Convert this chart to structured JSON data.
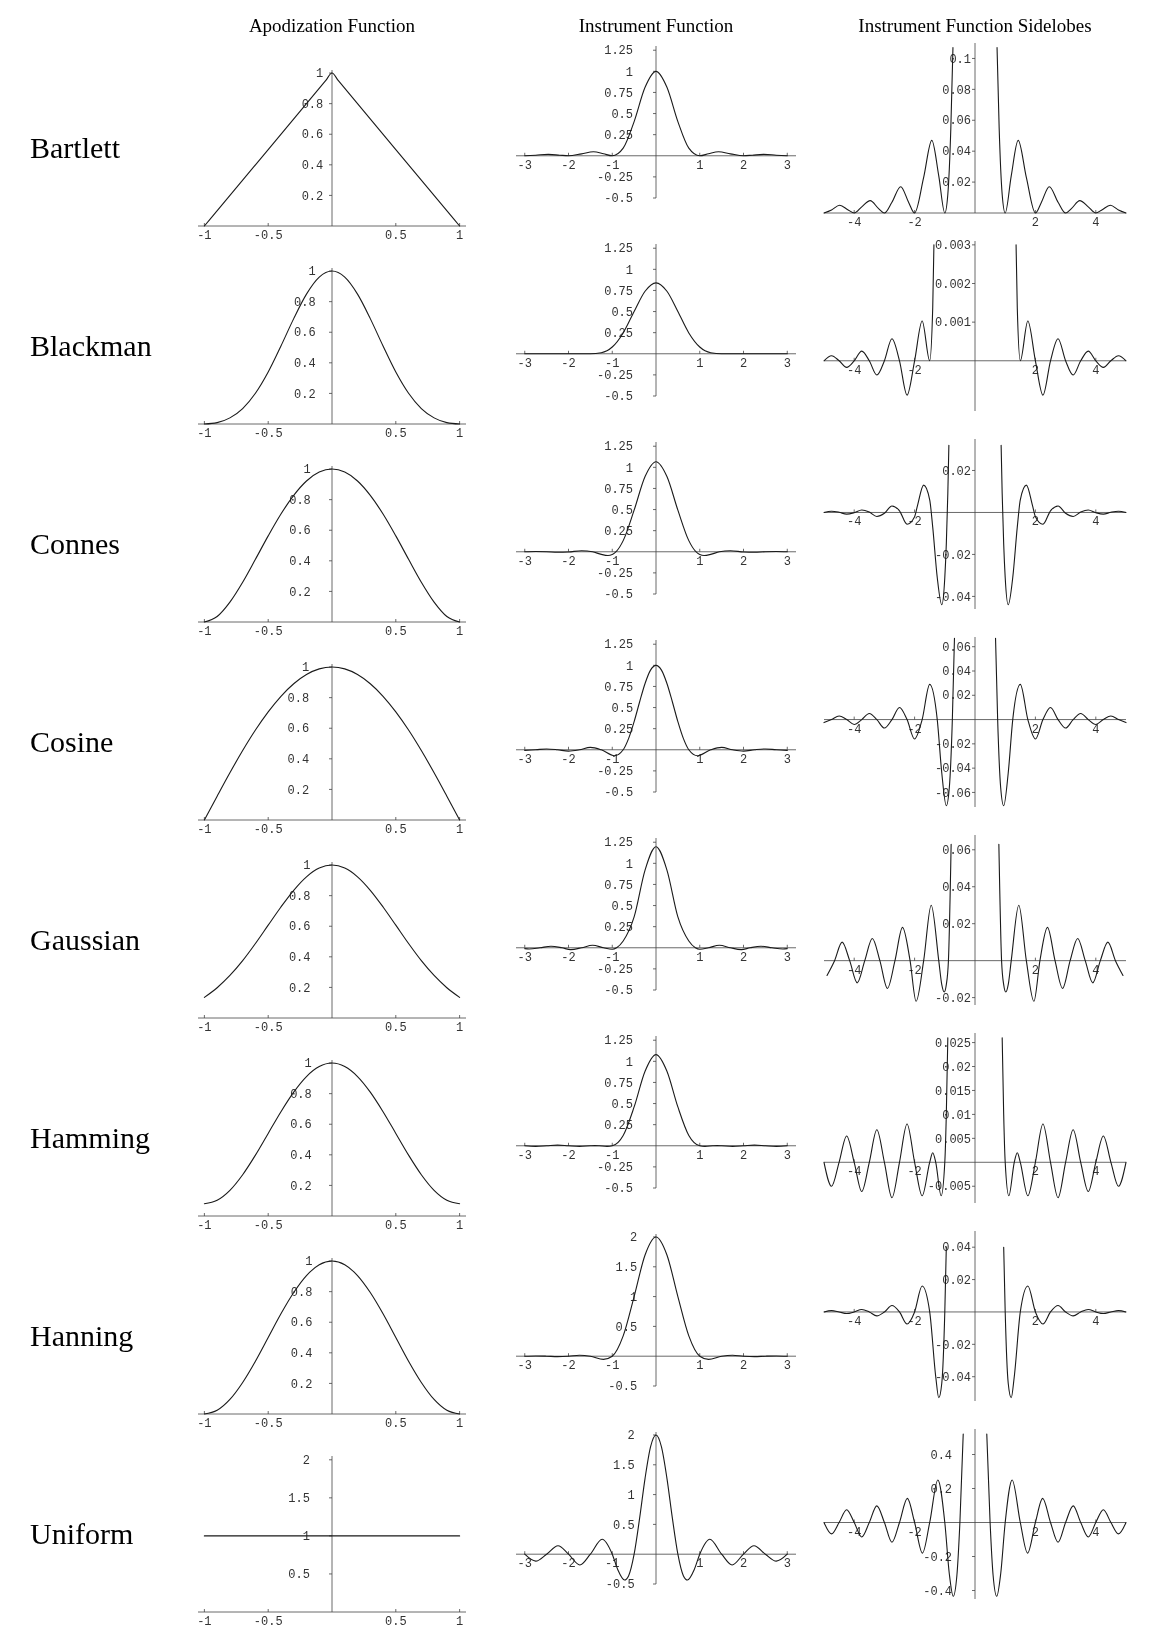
{
  "chart_data": [
    {
      "type": "line",
      "title": "Apodization Function",
      "ylabel": "Bartlett",
      "color": "#1a1a1a",
      "x": [
        -1,
        -0.5,
        -0.05,
        0,
        0.05,
        0.5,
        1
      ],
      "values": [
        0,
        0.5,
        0.95,
        1,
        0.95,
        0.5,
        0
      ],
      "xlim": [
        -1.05,
        1.05
      ],
      "ylim": [
        0,
        1.02
      ],
      "xticks": [
        -1,
        -0.5,
        0.5,
        1
      ],
      "yticks": [
        0.2,
        0.4,
        0.6,
        0.8,
        1
      ]
    },
    {
      "type": "line",
      "title": "Instrument Function",
      "color": "#1a1a1a",
      "x": [
        -3,
        -2.75,
        -2.46,
        -2.2,
        -2,
        -1.7,
        -1.43,
        -1.2,
        -1,
        -0.75,
        -0.5,
        -0.25,
        0,
        0.25,
        0.5,
        0.75,
        1,
        1.2,
        1.43,
        1.7,
        2,
        2.2,
        2.46,
        2.75,
        3
      ],
      "values": [
        0,
        0.007,
        0.017,
        0.007,
        0,
        0.023,
        0.047,
        0.024,
        0,
        0.09,
        0.405,
        0.811,
        1,
        0.811,
        0.405,
        0.09,
        0,
        0.024,
        0.047,
        0.023,
        0,
        0.007,
        0.017,
        0.007,
        0
      ],
      "xlim": [
        -3.2,
        3.2
      ],
      "ylim": [
        -0.5,
        1.3
      ],
      "xticks": [
        -3,
        -2,
        -1,
        1,
        2,
        3
      ],
      "yticks": [
        -0.5,
        -0.25,
        0.25,
        0.5,
        0.75,
        1,
        1.25
      ]
    },
    {
      "type": "line",
      "title": "Instrument Function Sidelobes",
      "color": "#1a1a1a",
      "x": [
        -5,
        -4.75,
        -4.48,
        -4.2,
        -4,
        -3.75,
        -3.47,
        -3.2,
        -3,
        -2.75,
        -2.46,
        -2.2,
        -2,
        -1.7,
        -1.43,
        -1.2,
        -1,
        -0.9,
        -0.8,
        -0.73,
        0,
        0.73,
        0.8,
        0.9,
        1,
        1.2,
        1.43,
        1.7,
        2,
        2.2,
        2.46,
        2.75,
        3,
        3.2,
        3.47,
        3.75,
        4,
        4.2,
        4.48,
        4.75,
        5
      ],
      "values": [
        0,
        0.002,
        0.005,
        0.002,
        0,
        0.004,
        0.008,
        0.003,
        0,
        0.007,
        0.017,
        0.007,
        0,
        0.023,
        0.047,
        0.024,
        0,
        0.012,
        0.055,
        0.107,
        null,
        0.107,
        0.055,
        0.012,
        0,
        0.024,
        0.047,
        0.023,
        0,
        0.007,
        0.017,
        0.007,
        0,
        0.003,
        0.008,
        0.004,
        0,
        0.002,
        0.005,
        0.002,
        0
      ],
      "xlim": [
        -5,
        5
      ],
      "ylim": [
        0,
        0.11
      ],
      "xticks": [
        -4,
        -2,
        2,
        4
      ],
      "yticks": [
        0.02,
        0.04,
        0.06,
        0.08,
        0.1
      ]
    },
    {
      "type": "line",
      "ylabel": "Blackman",
      "color": "#1a1a1a",
      "x": [
        -1,
        -0.9,
        -0.8,
        -0.7,
        -0.6,
        -0.5,
        -0.4,
        -0.3,
        -0.2,
        -0.1,
        0,
        0.1,
        0.2,
        0.3,
        0.4,
        0.5,
        0.6,
        0.7,
        0.8,
        0.9,
        1
      ],
      "values": [
        0,
        0.009,
        0.04,
        0.101,
        0.201,
        0.34,
        0.51,
        0.689,
        0.849,
        0.96,
        1,
        0.96,
        0.849,
        0.689,
        0.51,
        0.34,
        0.201,
        0.101,
        0.04,
        0.009,
        0
      ],
      "xlim": [
        -1.05,
        1.05
      ],
      "ylim": [
        0,
        1.02
      ],
      "xticks": [
        -1,
        -0.5,
        0.5,
        1
      ],
      "yticks": [
        0.2,
        0.4,
        0.6,
        0.8,
        1
      ]
    },
    {
      "type": "line",
      "color": "#1a1a1a",
      "x": [
        -3,
        -1.5,
        -1.25,
        -1,
        -0.75,
        -0.5,
        -0.25,
        0,
        0.25,
        0.5,
        0.75,
        1,
        1.25,
        1.5,
        3
      ],
      "values": [
        0,
        0,
        0.012,
        0.08,
        0.247,
        0.5,
        0.74,
        0.84,
        0.74,
        0.5,
        0.247,
        0.08,
        0.012,
        0,
        0
      ],
      "xlim": [
        -3.2,
        3.2
      ],
      "ylim": [
        -0.5,
        1.3
      ],
      "xticks": [
        -3,
        -2,
        -1,
        1,
        2,
        3
      ],
      "yticks": [
        -0.5,
        -0.25,
        0.25,
        0.5,
        0.75,
        1,
        1.25
      ]
    },
    {
      "type": "line",
      "color": "#1a1a1a",
      "x": [
        -5,
        -4.75,
        -4.5,
        -4.25,
        -4,
        -3.75,
        -3.5,
        -3.25,
        -3,
        -2.75,
        -2.5,
        -2.25,
        -2,
        -1.75,
        -1.5,
        -1.4,
        -1.36,
        0,
        1.36,
        1.4,
        1.5,
        1.75,
        2,
        2.25,
        2.5,
        2.75,
        3,
        3.25,
        3.5,
        3.75,
        4,
        4.25,
        4.5,
        4.75,
        5
      ],
      "values": [
        0,
        0.00013,
        0,
        -0.00017,
        0,
        0.00025,
        0,
        -0.00037,
        0,
        0.00057,
        0,
        -0.00089,
        0,
        0.00103,
        0,
        0.00137,
        0.003,
        null,
        0.003,
        0.00137,
        0,
        0.00103,
        0,
        -0.00089,
        0,
        0.00057,
        0,
        -0.00037,
        0,
        0.00025,
        0,
        -0.00017,
        0,
        0.00013,
        0
      ],
      "xlim": [
        -5,
        5
      ],
      "ylim": [
        -0.0013,
        0.0031
      ],
      "xticks": [
        -4,
        -2,
        2,
        4
      ],
      "yticks": [
        0.001,
        0.002,
        0.003
      ]
    },
    {
      "type": "line",
      "ylabel": "Connes",
      "color": "#1a1a1a",
      "x": [
        -1,
        -0.9,
        -0.8,
        -0.7,
        -0.6,
        -0.5,
        -0.4,
        -0.3,
        -0.2,
        -0.1,
        0,
        0.1,
        0.2,
        0.3,
        0.4,
        0.5,
        0.6,
        0.7,
        0.8,
        0.9,
        1
      ],
      "values": [
        0,
        0.036,
        0.13,
        0.26,
        0.41,
        0.563,
        0.706,
        0.828,
        0.922,
        0.98,
        1,
        0.98,
        0.922,
        0.828,
        0.706,
        0.563,
        0.41,
        0.26,
        0.13,
        0.036,
        0
      ],
      "xlim": [
        -1.05,
        1.05
      ],
      "ylim": [
        0,
        1.02
      ],
      "xticks": [
        -1,
        -0.5,
        0.5,
        1
      ],
      "yticks": [
        0.2,
        0.4,
        0.6,
        0.8,
        1
      ]
    },
    {
      "type": "line",
      "color": "#1a1a1a",
      "x": [
        -3,
        -2.75,
        -2.5,
        -2.25,
        -2,
        -1.7,
        -1.45,
        -1.25,
        -1.1,
        -0.9,
        -0.75,
        -0.5,
        -0.25,
        0,
        0.25,
        0.5,
        0.75,
        0.9,
        1.1,
        1.25,
        1.45,
        1.7,
        2,
        2.25,
        2.5,
        2.75,
        3
      ],
      "values": [
        0,
        0.003,
        0.001,
        -0.006,
        -0.002,
        0.013,
        0,
        -0.031,
        -0.044,
        0.009,
        0.132,
        0.493,
        0.891,
        1.067,
        0.891,
        0.493,
        0.132,
        0.009,
        -0.044,
        -0.031,
        0,
        0.013,
        -0.002,
        -0.006,
        0.001,
        0.003,
        0
      ],
      "xlim": [
        -3.2,
        3.2
      ],
      "ylim": [
        -0.5,
        1.3
      ],
      "xticks": [
        -3,
        -2,
        -1,
        1,
        2,
        3
      ],
      "yticks": [
        -0.5,
        -0.25,
        0.25,
        0.5,
        0.75,
        1,
        1.25
      ]
    },
    {
      "type": "line",
      "color": "#1a1a1a",
      "x": [
        -5,
        -4.75,
        -4.5,
        -4.25,
        -4,
        -3.75,
        -3.5,
        -3.25,
        -3,
        -2.75,
        -2.5,
        -2.25,
        -2,
        -1.9,
        -1.7,
        -1.5,
        -1.4,
        -1.25,
        -1.1,
        -1,
        -0.95,
        -0.9,
        -0.865,
        0,
        0.865,
        0.9,
        0.95,
        1,
        1.1,
        1.25,
        1.4,
        1.5,
        1.7,
        1.9,
        2,
        2.25,
        2.5,
        2.75,
        3,
        3.25,
        3.5,
        3.75,
        4,
        4.25,
        4.5,
        4.75,
        5
      ],
      "values": [
        0,
        0.0006,
        0.0001,
        -0.0008,
        -0.0001,
        0.0012,
        0.0002,
        -0.0019,
        -0.0004,
        0.0031,
        0.0008,
        -0.0056,
        -0.002,
        0.0035,
        0.013,
        0.006,
        -0.007,
        -0.031,
        -0.044,
        -0.031,
        -0.015,
        0.009,
        0.032,
        null,
        0.032,
        0.009,
        -0.015,
        -0.031,
        -0.044,
        -0.031,
        -0.007,
        0.006,
        0.013,
        0.0035,
        -0.002,
        -0.0056,
        0.0008,
        0.0031,
        -0.0004,
        -0.0019,
        0.0002,
        0.0012,
        -0.0001,
        -0.0008,
        0.0001,
        0.0006,
        0
      ],
      "xlim": [
        -5,
        5
      ],
      "ylim": [
        -0.046,
        0.035
      ],
      "xticks": [
        -4,
        -2,
        2,
        4
      ],
      "yticks": [
        -0.04,
        -0.02,
        0.02
      ]
    },
    {
      "type": "line",
      "ylabel": "Cosine",
      "color": "#1a1a1a",
      "x": [
        -1,
        -0.9,
        -0.8,
        -0.7,
        -0.6,
        -0.5,
        -0.4,
        -0.3,
        -0.2,
        -0.1,
        0,
        0.1,
        0.2,
        0.3,
        0.4,
        0.5,
        0.6,
        0.7,
        0.8,
        0.9,
        1
      ],
      "values": [
        0,
        0.156,
        0.309,
        0.454,
        0.588,
        0.707,
        0.809,
        0.891,
        0.951,
        0.988,
        1,
        0.988,
        0.951,
        0.891,
        0.809,
        0.707,
        0.588,
        0.454,
        0.309,
        0.156,
        0
      ],
      "xlim": [
        -1.05,
        1.05
      ],
      "ylim": [
        0,
        1.02
      ],
      "xticks": [
        -1,
        -0.5,
        0.5,
        1
      ],
      "yticks": [
        0.2,
        0.4,
        0.6,
        0.8,
        1
      ]
    },
    {
      "type": "line",
      "color": "#1a1a1a",
      "x": [
        -3,
        -2.75,
        -2.5,
        -2.25,
        -2,
        -1.75,
        -1.5,
        -1.25,
        -0.95,
        -0.75,
        -0.625,
        -0.5,
        -0.375,
        -0.25,
        -0.125,
        0,
        0.125,
        0.25,
        0.375,
        0.5,
        0.625,
        0.75,
        0.95,
        1.25,
        1.5,
        1.75,
        2,
        2.25,
        2.5,
        2.75,
        3
      ],
      "values": [
        -0.007,
        0,
        0.01,
        0,
        -0.016,
        0,
        0.029,
        0,
        -0.071,
        0,
        0.135,
        0.333,
        0.566,
        0.785,
        0.943,
        1,
        0.943,
        0.785,
        0.566,
        0.333,
        0.135,
        0,
        -0.071,
        0,
        0.029,
        0,
        -0.016,
        0,
        0.01,
        0,
        -0.007
      ],
      "xlim": [
        -3.2,
        3.2
      ],
      "ylim": [
        -0.5,
        1.3
      ],
      "xticks": [
        -3,
        -2,
        -1,
        1,
        2,
        3
      ],
      "yticks": [
        -0.5,
        -0.25,
        0.25,
        0.5,
        0.75,
        1,
        1.25
      ]
    },
    {
      "type": "line",
      "color": "#1a1a1a",
      "x": [
        -5,
        -4.75,
        -4.5,
        -4.25,
        -4,
        -3.75,
        -3.5,
        -3.25,
        -3,
        -2.75,
        -2.5,
        -2.25,
        -2,
        -1.75,
        -1.5,
        -1.25,
        -1.1,
        -0.95,
        -0.85,
        -0.75,
        -0.68,
        0,
        0.68,
        0.75,
        0.85,
        0.95,
        1.1,
        1.25,
        1.5,
        1.75,
        2,
        2.25,
        2.5,
        2.75,
        3,
        3.25,
        3.5,
        3.75,
        4,
        4.25,
        4.5,
        4.75,
        5
      ],
      "values": [
        -0.0025,
        0,
        0.003,
        0,
        -0.004,
        0,
        0.005,
        0,
        -0.007,
        0,
        0.01,
        0,
        -0.016,
        0,
        0.029,
        0,
        -0.044,
        -0.071,
        -0.056,
        0,
        0.067,
        null,
        0.067,
        0,
        -0.056,
        -0.071,
        -0.044,
        0,
        0.029,
        0,
        -0.016,
        0,
        0.01,
        0,
        -0.007,
        0,
        0.005,
        0,
        -0.004,
        0,
        0.003,
        0,
        -0.0025
      ],
      "xlim": [
        -5,
        5
      ],
      "ylim": [
        -0.072,
        0.068
      ],
      "xticks": [
        -4,
        -2,
        2,
        4
      ],
      "yticks": [
        -0.06,
        -0.04,
        -0.02,
        0.02,
        0.04,
        0.06
      ]
    },
    {
      "type": "line",
      "ylabel": "Gaussian",
      "color": "#1a1a1a",
      "x": [
        -1,
        -0.9,
        -0.8,
        -0.7,
        -0.6,
        -0.5,
        -0.4,
        -0.3,
        -0.2,
        -0.1,
        0,
        0.1,
        0.2,
        0.3,
        0.4,
        0.5,
        0.6,
        0.7,
        0.8,
        0.9,
        1
      ],
      "values": [
        0.135,
        0.198,
        0.278,
        0.375,
        0.487,
        0.607,
        0.726,
        0.835,
        0.923,
        0.98,
        1,
        0.98,
        0.923,
        0.835,
        0.726,
        0.607,
        0.487,
        0.375,
        0.278,
        0.198,
        0.135
      ],
      "xlim": [
        -1.05,
        1.05
      ],
      "ylim": [
        0,
        1.02
      ],
      "xticks": [
        -1,
        -0.5,
        0.5,
        1
      ],
      "yticks": [
        0.2,
        0.4,
        0.6,
        0.8,
        1
      ]
    },
    {
      "type": "line",
      "color": "#1a1a1a",
      "x": [
        -3,
        -2.9,
        -2.65,
        -2.4,
        -2.15,
        -1.95,
        -1.7,
        -1.45,
        -1.2,
        -1,
        -0.9,
        -0.75,
        -0.5,
        -0.25,
        0,
        0.25,
        0.5,
        0.75,
        0.9,
        1,
        1.2,
        1.45,
        1.7,
        1.95,
        2.15,
        2.4,
        2.65,
        2.9,
        3
      ],
      "values": [
        -0.01,
        -0.015,
        0,
        0.018,
        0,
        -0.022,
        0,
        0.03,
        0,
        -0.017,
        0,
        0.08,
        0.365,
        0.92,
        1.196,
        0.92,
        0.365,
        0.08,
        0,
        -0.017,
        0,
        0.03,
        0,
        -0.022,
        0,
        0.018,
        0,
        -0.015,
        -0.01
      ],
      "xlim": [
        -3.2,
        3.2
      ],
      "ylim": [
        -0.5,
        1.3
      ],
      "xticks": [
        -3,
        -2,
        -1,
        1,
        2,
        3
      ],
      "yticks": [
        -0.5,
        -0.25,
        0.25,
        0.5,
        0.75,
        1,
        1.25
      ]
    },
    {
      "type": "line",
      "color": "#1a1a1a",
      "x": [
        -4.9,
        -4.65,
        -4.4,
        -4.15,
        -3.9,
        -3.65,
        -3.4,
        -3.15,
        -2.9,
        -2.65,
        -2.4,
        -2.15,
        -1.95,
        -1.7,
        -1.45,
        -1.2,
        -1.1,
        -1.02,
        -0.95,
        -0.88,
        -0.79,
        0,
        0.79,
        0.88,
        0.95,
        1.02,
        1.1,
        1.2,
        1.45,
        1.7,
        1.95,
        2.15,
        2.4,
        2.65,
        2.9,
        3.15,
        3.4,
        3.65,
        3.9,
        4.15,
        4.4,
        4.65,
        4.9
      ],
      "values": [
        -0.008,
        0,
        0.01,
        0,
        -0.012,
        0,
        0.012,
        0,
        -0.015,
        0,
        0.018,
        0,
        -0.022,
        0,
        0.03,
        0,
        -0.013,
        -0.017,
        -0.013,
        0,
        0.063,
        null,
        0.063,
        0,
        -0.013,
        -0.017,
        -0.013,
        0,
        0.03,
        0,
        -0.022,
        0,
        0.018,
        0,
        -0.015,
        0,
        0.012,
        0,
        -0.012,
        0,
        0.01,
        0,
        -0.008
      ],
      "xlim": [
        -5,
        5
      ],
      "ylim": [
        -0.024,
        0.068
      ],
      "xticks": [
        -4,
        -2,
        2,
        4
      ],
      "yticks": [
        -0.02,
        0.02,
        0.04,
        0.06
      ]
    },
    {
      "type": "line",
      "ylabel": "Hamming",
      "color": "#1a1a1a",
      "x": [
        -1,
        -0.9,
        -0.8,
        -0.7,
        -0.6,
        -0.5,
        -0.4,
        -0.3,
        -0.2,
        -0.1,
        0,
        0.1,
        0.2,
        0.3,
        0.4,
        0.5,
        0.6,
        0.7,
        0.8,
        0.9,
        1
      ],
      "values": [
        0.08,
        0.103,
        0.168,
        0.27,
        0.398,
        0.54,
        0.682,
        0.81,
        0.912,
        0.977,
        1,
        0.977,
        0.912,
        0.81,
        0.682,
        0.54,
        0.398,
        0.27,
        0.168,
        0.103,
        0.08
      ],
      "xlim": [
        -1.05,
        1.05
      ],
      "ylim": [
        0,
        1.02
      ],
      "xticks": [
        -1,
        -0.5,
        0.5,
        1
      ],
      "yticks": [
        0.2,
        0.4,
        0.6,
        0.8,
        1
      ]
    },
    {
      "type": "line",
      "color": "#1a1a1a",
      "x": [
        -3,
        -2.75,
        -2.5,
        -2.25,
        -2,
        -1.75,
        -1.5,
        -1.4,
        -1.3,
        -1.12,
        -1,
        -0.75,
        -0.5,
        -0.25,
        0,
        0.25,
        0.5,
        0.75,
        1,
        1.12,
        1.3,
        1.4,
        1.5,
        1.75,
        2,
        2.25,
        2.5,
        2.75,
        3
      ],
      "values": [
        0,
        -0.007,
        0,
        0.008,
        0,
        -0.007,
        0,
        0.002,
        0,
        -0.007,
        0,
        0.122,
        0.46,
        0.883,
        1.08,
        0.883,
        0.46,
        0.122,
        0,
        -0.007,
        0,
        0.002,
        0,
        -0.007,
        0,
        0.008,
        0,
        -0.007,
        0
      ],
      "xlim": [
        -3.2,
        3.2
      ],
      "ylim": [
        -0.5,
        1.3
      ],
      "xticks": [
        -3,
        -2,
        -1,
        1,
        2,
        3
      ],
      "yticks": [
        -0.5,
        -0.25,
        0.25,
        0.5,
        0.75,
        1,
        1.25
      ]
    },
    {
      "type": "line",
      "color": "#1a1a1a",
      "x": [
        -5,
        -4.75,
        -4.5,
        -4.25,
        -4,
        -3.75,
        -3.5,
        -3.25,
        -3,
        -2.75,
        -2.5,
        -2.25,
        -2,
        -1.75,
        -1.5,
        -1.4,
        -1.3,
        -1.12,
        -1,
        -0.95,
        -0.9,
        0,
        0.9,
        0.95,
        1,
        1.12,
        1.3,
        1.4,
        1.5,
        1.75,
        2,
        2.25,
        2.5,
        2.75,
        3,
        3.25,
        3.5,
        3.75,
        4,
        4.25,
        4.5,
        4.75,
        5
      ],
      "values": [
        0,
        -0.005,
        0,
        0.0055,
        0,
        -0.0061,
        0,
        0.0068,
        0,
        -0.0074,
        0,
        0.008,
        0,
        -0.007,
        0,
        0.002,
        0,
        -0.007,
        0,
        0.01,
        0.026,
        null,
        0.026,
        0.01,
        0,
        -0.007,
        0,
        0.002,
        0,
        -0.007,
        0,
        0.008,
        0,
        -0.0074,
        0,
        0.0068,
        0,
        -0.0061,
        0,
        0.0055,
        0,
        -0.005,
        0
      ],
      "xlim": [
        -5,
        5
      ],
      "ylim": [
        -0.0085,
        0.027
      ],
      "xticks": [
        -4,
        -2,
        2,
        4
      ],
      "yticks": [
        -0.005,
        0.005,
        0.01,
        0.015,
        0.02,
        0.025
      ]
    },
    {
      "type": "line",
      "ylabel": "Hanning",
      "color": "#1a1a1a",
      "x": [
        -1,
        -0.9,
        -0.8,
        -0.7,
        -0.6,
        -0.5,
        -0.4,
        -0.3,
        -0.2,
        -0.1,
        0,
        0.1,
        0.2,
        0.3,
        0.4,
        0.5,
        0.6,
        0.7,
        0.8,
        0.9,
        1
      ],
      "values": [
        0,
        0.024,
        0.095,
        0.206,
        0.345,
        0.5,
        0.655,
        0.794,
        0.905,
        0.976,
        1,
        0.976,
        0.905,
        0.794,
        0.655,
        0.5,
        0.345,
        0.206,
        0.095,
        0.024,
        0
      ],
      "xlim": [
        -1.05,
        1.05
      ],
      "ylim": [
        0,
        1.02
      ],
      "xticks": [
        -1,
        -0.5,
        0.5,
        1
      ],
      "yticks": [
        0.2,
        0.4,
        0.6,
        0.8,
        1
      ]
    },
    {
      "type": "line",
      "color": "#1a1a1a",
      "x": [
        -3,
        -2.75,
        -2.5,
        -2.25,
        -2,
        -1.75,
        -1.5,
        -1.2,
        -1,
        -0.75,
        -0.5,
        -0.25,
        0,
        0.25,
        0.5,
        0.75,
        1,
        1.2,
        1.5,
        1.75,
        2,
        2.25,
        2.5,
        2.75,
        3
      ],
      "values": [
        0,
        0.004,
        0,
        -0.007,
        0,
        0.016,
        0,
        -0.053,
        0,
        0.34,
        1,
        1.698,
        2,
        1.698,
        1,
        0.34,
        0,
        -0.053,
        0,
        0.016,
        0,
        -0.007,
        0,
        0.004,
        0
      ],
      "xlim": [
        -3.2,
        3.2
      ],
      "ylim": [
        -0.5,
        2.05
      ],
      "xticks": [
        -3,
        -2,
        -1,
        1,
        2,
        3
      ],
      "yticks": [
        -0.5,
        0.5,
        1,
        1.5,
        2
      ]
    },
    {
      "type": "line",
      "color": "#1a1a1a",
      "x": [
        -5,
        -4.75,
        -4.5,
        -4.25,
        -4,
        -3.75,
        -3.5,
        -3.25,
        -3,
        -2.75,
        -2.5,
        -2.25,
        -2,
        -1.75,
        -1.5,
        -1.3,
        -1.2,
        -1.1,
        -1,
        -0.95,
        0,
        0.95,
        1,
        1.1,
        1.2,
        1.3,
        1.5,
        1.75,
        2,
        2.25,
        2.5,
        2.75,
        3,
        3.25,
        3.5,
        3.75,
        4,
        4.25,
        4.5,
        4.75,
        5
      ],
      "values": [
        0,
        0.0008,
        0,
        -0.001,
        0,
        0.0015,
        0,
        -0.0024,
        0,
        0.004,
        0,
        -0.0074,
        0,
        0.016,
        0,
        -0.04,
        -0.053,
        -0.044,
        0,
        0.04,
        null,
        0.04,
        0,
        -0.044,
        -0.053,
        -0.04,
        0,
        0.016,
        0,
        -0.0074,
        0,
        0.004,
        0,
        -0.0024,
        0,
        0.0015,
        0,
        -0.001,
        0,
        0.0008,
        0
      ],
      "xlim": [
        -5,
        5
      ],
      "ylim": [
        -0.055,
        0.05
      ],
      "xticks": [
        -4,
        -2,
        2,
        4
      ],
      "yticks": [
        -0.04,
        -0.02,
        0.02,
        0.04
      ]
    },
    {
      "type": "line",
      "ylabel": "Uniform",
      "color": "#1a1a1a",
      "x": [
        -1,
        1
      ],
      "values": [
        1,
        1
      ],
      "xlim": [
        -1.05,
        1.05
      ],
      "ylim": [
        0,
        2.05
      ],
      "xticks": [
        -1,
        -0.5,
        0.5,
        1
      ],
      "yticks": [
        0.5,
        1,
        1.5,
        2
      ]
    },
    {
      "type": "line",
      "color": "#1a1a1a",
      "x": [
        -3,
        -2.75,
        -2.5,
        -2.24,
        -2,
        -1.74,
        -1.5,
        -1.23,
        -1,
        -0.875,
        -0.72,
        -0.625,
        -0.5,
        -0.375,
        -0.25,
        -0.125,
        0,
        0.125,
        0.25,
        0.375,
        0.5,
        0.625,
        0.72,
        0.875,
        1,
        1.23,
        1.5,
        1.74,
        2,
        2.24,
        2.5,
        2.75,
        3
      ],
      "values": [
        0,
        -0.116,
        0,
        0.142,
        0,
        -0.18,
        0,
        0.25,
        0,
        -0.257,
        -0.434,
        -0.36,
        0,
        0.6,
        1.273,
        1.8,
        2,
        1.8,
        1.273,
        0.6,
        0,
        -0.36,
        -0.434,
        -0.257,
        0,
        0.25,
        0,
        -0.18,
        0,
        0.142,
        0,
        -0.116,
        0
      ],
      "xlim": [
        -3.2,
        3.2
      ],
      "ylim": [
        -0.5,
        2.05
      ],
      "xticks": [
        -3,
        -2,
        -1,
        1,
        2,
        3
      ],
      "yticks": [
        -0.5,
        0.5,
        1,
        1.5,
        2
      ]
    },
    {
      "type": "line",
      "color": "#1a1a1a",
      "x": [
        -5,
        -4.75,
        -4.5,
        -4.25,
        -4,
        -3.75,
        -3.5,
        -3.25,
        -3,
        -2.75,
        -2.5,
        -2.24,
        -2,
        -1.74,
        -1.5,
        -1.23,
        -1,
        -0.85,
        -0.72,
        -0.6,
        -0.5,
        -0.39,
        0,
        0.39,
        0.5,
        0.6,
        0.72,
        0.85,
        1,
        1.23,
        1.5,
        1.74,
        2,
        2.24,
        2.5,
        2.75,
        3,
        3.25,
        3.5,
        3.75,
        4,
        4.25,
        4.5,
        4.75,
        5
      ],
      "values": [
        0,
        -0.067,
        0,
        0.075,
        0,
        -0.085,
        0,
        0.098,
        0,
        -0.116,
        0,
        0.142,
        0,
        -0.18,
        0,
        0.25,
        0,
        -0.303,
        -0.434,
        -0.312,
        0,
        0.52,
        null,
        0.52,
        0,
        -0.312,
        -0.434,
        -0.303,
        0,
        0.25,
        0,
        -0.18,
        0,
        0.142,
        0,
        -0.116,
        0,
        0.098,
        0,
        -0.085,
        0,
        0.075,
        0,
        -0.067,
        0
      ],
      "xlim": [
        -5,
        5
      ],
      "ylim": [
        -0.45,
        0.55
      ],
      "xticks": [
        -4,
        -2,
        2,
        4
      ],
      "yticks": [
        -0.4,
        -0.2,
        0.2,
        0.4
      ]
    }
  ]
}
